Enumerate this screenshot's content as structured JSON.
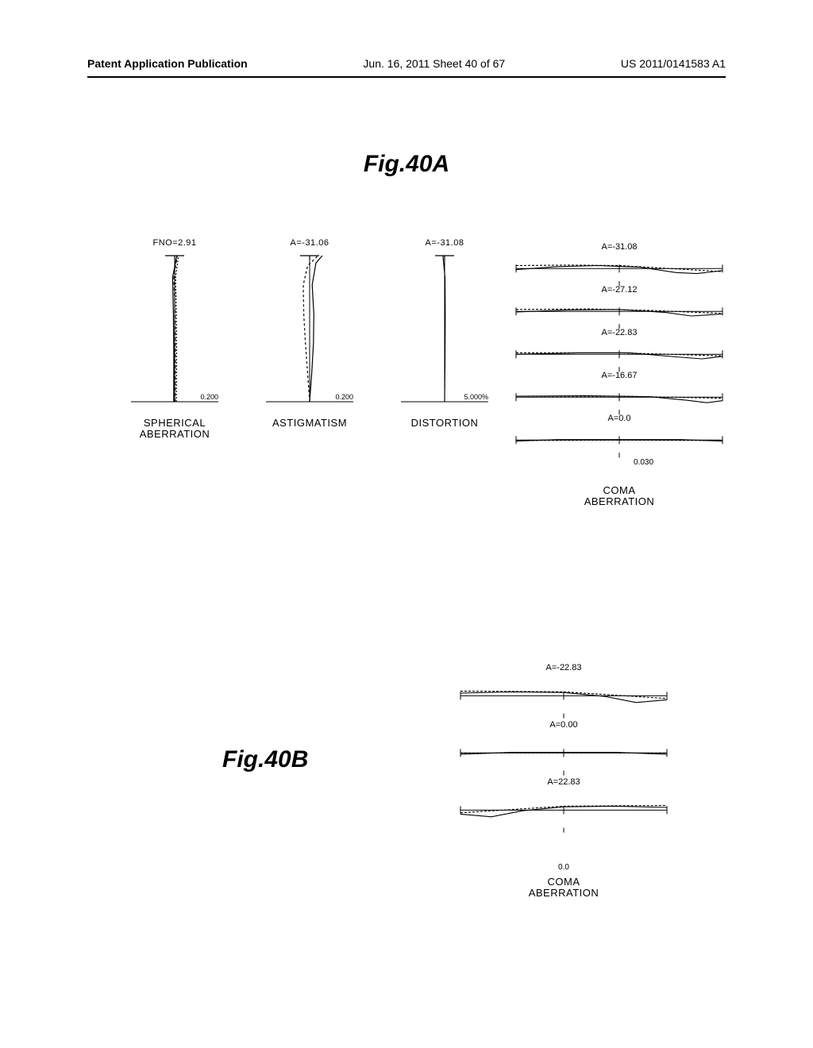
{
  "header": {
    "left": "Patent Application Publication",
    "mid": "Jun. 16, 2011  Sheet 40 of 67",
    "right": "US 2011/0141583 A1"
  },
  "figA": {
    "title": "Fig.40A",
    "panels": {
      "spherical": {
        "header": "FNO=2.91",
        "xscale": "0.200",
        "label_line1": "SPHERICAL",
        "label_line2": "ABERRATION",
        "xlim": [
          -0.2,
          0.2
        ],
        "curves": [
          {
            "color": "#000000",
            "dash": "none",
            "points": [
              [
                -0.005,
                0
              ],
              [
                -0.004,
                0.3
              ],
              [
                -0.006,
                0.6
              ],
              [
                -0.01,
                0.85
              ],
              [
                0.01,
                1.0
              ]
            ]
          },
          {
            "color": "#000000",
            "dash": "4,3",
            "points": [
              [
                0.002,
                0
              ],
              [
                0.003,
                0.3
              ],
              [
                0.002,
                0.6
              ],
              [
                -0.004,
                0.85
              ],
              [
                0.012,
                1.0
              ]
            ]
          },
          {
            "color": "#000000",
            "dash": "2,2",
            "points": [
              [
                0.008,
                0
              ],
              [
                0.009,
                0.3
              ],
              [
                0.008,
                0.6
              ],
              [
                0.004,
                0.85
              ],
              [
                0.018,
                1.0
              ]
            ]
          }
        ]
      },
      "astigmatism": {
        "header": "A=-31.06",
        "xscale": "0.200",
        "label_line1": "ASTIGMATISM",
        "label_line2": "",
        "xlim": [
          -0.2,
          0.2
        ],
        "curves": [
          {
            "color": "#000000",
            "dash": "none",
            "points": [
              [
                0.0,
                0
              ],
              [
                0.01,
                0.2
              ],
              [
                0.018,
                0.4
              ],
              [
                0.02,
                0.6
              ],
              [
                0.012,
                0.8
              ],
              [
                0.03,
                0.95
              ],
              [
                0.06,
                1.0
              ]
            ]
          },
          {
            "color": "#000000",
            "dash": "3,3",
            "points": [
              [
                0.0,
                0
              ],
              [
                -0.01,
                0.2
              ],
              [
                -0.02,
                0.4
              ],
              [
                -0.028,
                0.6
              ],
              [
                -0.03,
                0.8
              ],
              [
                -0.01,
                0.93
              ],
              [
                0.04,
                1.0
              ]
            ]
          }
        ]
      },
      "distortion": {
        "header": "A=-31.08",
        "xscale": "5.000%",
        "label_line1": "DISTORTION",
        "label_line2": "",
        "xlim": [
          -5,
          5
        ],
        "curves": [
          {
            "color": "#000000",
            "dash": "none",
            "points": [
              [
                0,
                0
              ],
              [
                0.05,
                0.3
              ],
              [
                0.08,
                0.6
              ],
              [
                0.05,
                0.85
              ],
              [
                -0.2,
                1.0
              ]
            ]
          }
        ]
      }
    },
    "coma": {
      "label": "COMA",
      "label2": "ABERRATION",
      "scale": "0.030",
      "ylim": [
        -0.03,
        0.03
      ],
      "xlim": [
        -1,
        1
      ],
      "rows": [
        {
          "header": "A=-31.08",
          "curves": [
            {
              "dash": "none",
              "points": [
                [
                  -1,
                  -0.002
                ],
                [
                  -0.6,
                  0.004
                ],
                [
                  -0.2,
                  0.006
                ],
                [
                  0.2,
                  0.003
                ],
                [
                  0.55,
                  -0.008
                ],
                [
                  0.75,
                  -0.01
                ],
                [
                  1,
                  -0.004
                ]
              ]
            },
            {
              "dash": "3,2",
              "points": [
                [
                  -1,
                  0.006
                ],
                [
                  -0.5,
                  0.007
                ],
                [
                  0,
                  0.006
                ],
                [
                  0.5,
                  0.0
                ],
                [
                  1,
                  -0.006
                ]
              ]
            }
          ]
        },
        {
          "header": "A=-27.12",
          "curves": [
            {
              "dash": "none",
              "points": [
                [
                  -1,
                  -0.001
                ],
                [
                  -0.5,
                  0.003
                ],
                [
                  0,
                  0.004
                ],
                [
                  0.45,
                  -0.002
                ],
                [
                  0.7,
                  -0.009
                ],
                [
                  1,
                  -0.005
                ]
              ]
            },
            {
              "dash": "3,2",
              "points": [
                [
                  -1,
                  0.004
                ],
                [
                  -0.3,
                  0.005
                ],
                [
                  0.3,
                  0.002
                ],
                [
                  1,
                  -0.004
                ]
              ]
            }
          ]
        },
        {
          "header": "A=-22.83",
          "curves": [
            {
              "dash": "none",
              "points": [
                [
                  -1,
                  0.0
                ],
                [
                  -0.4,
                  0.003
                ],
                [
                  0.1,
                  0.003
                ],
                [
                  0.55,
                  -0.005
                ],
                [
                  0.8,
                  -0.009
                ],
                [
                  1,
                  -0.004
                ]
              ]
            },
            {
              "dash": "3,2",
              "points": [
                [
                  -1,
                  0.003
                ],
                [
                  0,
                  0.003
                ],
                [
                  1,
                  -0.003
                ]
              ]
            }
          ]
        },
        {
          "header": "A=-16.67",
          "curves": [
            {
              "dash": "none",
              "points": [
                [
                  -1,
                  0.002
                ],
                [
                  -0.3,
                  0.003
                ],
                [
                  0.3,
                  0.001
                ],
                [
                  0.65,
                  -0.006
                ],
                [
                  0.85,
                  -0.011
                ],
                [
                  1,
                  -0.007
                ]
              ]
            },
            {
              "dash": "3,2",
              "points": [
                [
                  -1,
                  0.002
                ],
                [
                  0,
                  0.002
                ],
                [
                  1,
                  -0.002
                ]
              ]
            }
          ]
        },
        {
          "header": "A=0.0",
          "curves": [
            {
              "dash": "none",
              "points": [
                [
                  -1,
                  -0.002
                ],
                [
                  -0.6,
                  0.001
                ],
                [
                  0,
                  0.001
                ],
                [
                  0.6,
                  0.001
                ],
                [
                  1,
                  -0.002
                ]
              ]
            },
            {
              "dash": "3,2",
              "points": [
                [
                  -1,
                  -0.001
                ],
                [
                  0,
                  0.0
                ],
                [
                  1,
                  -0.001
                ]
              ]
            }
          ]
        }
      ]
    }
  },
  "figB": {
    "title": "Fig.40B",
    "coma": {
      "label": "COMA",
      "label2": "ABERRATION",
      "scale": "0.0",
      "ylim": [
        -0.03,
        0.03
      ],
      "xlim": [
        -1,
        1
      ],
      "rows": [
        {
          "header": "A=-22.83",
          "curves": [
            {
              "dash": "none",
              "points": [
                [
                  -1,
                  0.004
                ],
                [
                  -0.5,
                  0.006
                ],
                [
                  0,
                  0.005
                ],
                [
                  0.4,
                  -0.001
                ],
                [
                  0.7,
                  -0.01
                ],
                [
                  1,
                  -0.006
                ]
              ]
            },
            {
              "dash": "3,2",
              "points": [
                [
                  -1,
                  0.007
                ],
                [
                  0,
                  0.006
                ],
                [
                  1,
                  -0.004
                ]
              ]
            }
          ]
        },
        {
          "header": "A=0.00",
          "curves": [
            {
              "dash": "none",
              "points": [
                [
                  -1,
                  -0.002
                ],
                [
                  -0.5,
                  0.001
                ],
                [
                  0,
                  0.001
                ],
                [
                  0.5,
                  0.001
                ],
                [
                  1,
                  -0.002
                ]
              ]
            },
            {
              "dash": "3,2",
              "points": [
                [
                  -1,
                  0.0
                ],
                [
                  0,
                  0.0
                ],
                [
                  1,
                  0.0
                ]
              ]
            }
          ]
        },
        {
          "header": "A=22.83",
          "curves": [
            {
              "dash": "none",
              "points": [
                [
                  -1,
                  -0.006
                ],
                [
                  -0.7,
                  -0.01
                ],
                [
                  -0.4,
                  -0.001
                ],
                [
                  0,
                  0.005
                ],
                [
                  0.5,
                  0.006
                ],
                [
                  1,
                  0.004
                ]
              ]
            },
            {
              "dash": "3,2",
              "points": [
                [
                  -1,
                  -0.004
                ],
                [
                  0,
                  0.006
                ],
                [
                  1,
                  0.007
                ]
              ]
            }
          ]
        }
      ]
    }
  },
  "style": {
    "stroke": "#000000",
    "stroke_width": 1.2,
    "background": "#ffffff"
  }
}
